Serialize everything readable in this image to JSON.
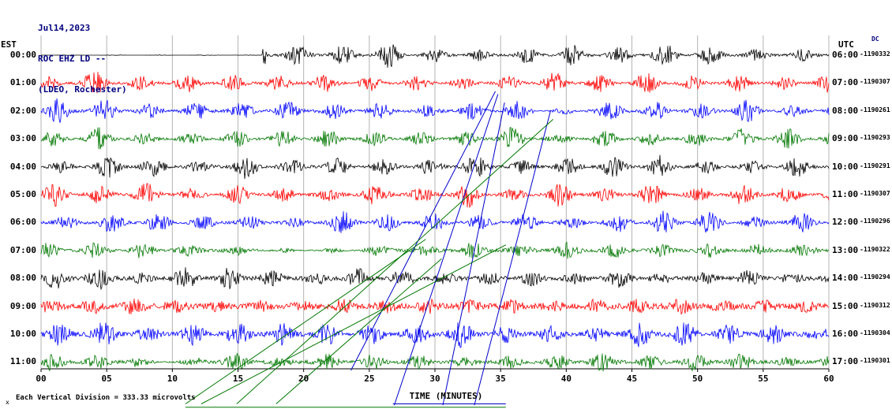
{
  "header": {
    "date": "Jul14,2023",
    "station": "ROC EHZ LD --",
    "location": "(LDEO, Rochester)"
  },
  "axes": {
    "left_title": "EST",
    "right_title": "UTC",
    "right_corner": "DC",
    "x_title": "TIME (MINUTES)",
    "x_ticks": [
      "00",
      "05",
      "10",
      "15",
      "20",
      "25",
      "30",
      "35",
      "40",
      "45",
      "50",
      "55",
      "60"
    ]
  },
  "footer": {
    "scale_note": "Each Vertical Division =  333.33 microvolts",
    "marker": "x"
  },
  "chart_data": {
    "type": "line",
    "title": "ROC EHZ LD -- (LDEO, Rochester) helicorder record Jul14,2023",
    "x_axis": {
      "label": "TIME (MINUTES)",
      "range_minutes": [
        0,
        60
      ],
      "tick_interval_minutes": 5
    },
    "grid": true,
    "trace_colors_cycle": [
      "#000000",
      "#ff0000",
      "#0000ff",
      "#007700"
    ],
    "rows": [
      {
        "est": "00:00",
        "utc": "06:00",
        "dc": "-1190332",
        "color": "#000000",
        "seed": 101,
        "base_noise": 1.3,
        "burst_period_min": 3.5,
        "burst_phase_min": 2.0,
        "burst_amp": 12,
        "quiet": [
          [
            0,
            16.8,
            0.03
          ]
        ],
        "spikes": [
          [
            17.0,
            15
          ]
        ]
      },
      {
        "est": "01:00",
        "utc": "07:00",
        "dc": "-1190307",
        "color": "#ff0000",
        "seed": 202,
        "base_noise": 1.5,
        "burst_period_min": 3.5,
        "burst_phase_min": 0.6,
        "burst_amp": 12
      },
      {
        "est": "02:00",
        "utc": "08:00",
        "dc": "-1190261",
        "color": "#0000ff",
        "seed": 303,
        "base_noise": 1.5,
        "burst_period_min": 3.5,
        "burst_phase_min": 1.3,
        "burst_amp": 12,
        "quiet": [
          [
            37.5,
            41.5,
            0.35
          ]
        ]
      },
      {
        "est": "03:00",
        "utc": "09:00",
        "dc": "-1190293",
        "color": "#007700",
        "seed": 404,
        "base_noise": 1.4,
        "burst_period_min": 3.5,
        "burst_phase_min": 0.9,
        "burst_amp": 11
      },
      {
        "est": "04:00",
        "utc": "10:00",
        "dc": "-1190291",
        "color": "#000000",
        "seed": 505,
        "base_noise": 1.5,
        "burst_period_min": 3.5,
        "burst_phase_min": 1.6,
        "burst_amp": 12
      },
      {
        "est": "05:00",
        "utc": "11:00",
        "dc": "-1190307",
        "color": "#ff0000",
        "seed": 606,
        "base_noise": 1.6,
        "burst_period_min": 3.5,
        "burst_phase_min": 1.0,
        "burst_amp": 12
      },
      {
        "est": "06:00",
        "utc": "12:00",
        "dc": "-1190296",
        "color": "#0000ff",
        "seed": 707,
        "base_noise": 1.6,
        "burst_period_min": 3.5,
        "burst_phase_min": 1.9,
        "burst_amp": 11
      },
      {
        "est": "07:00",
        "utc": "13:00",
        "dc": "-1190322",
        "color": "#007700",
        "seed": 808,
        "base_noise": 1.8,
        "burst_period_min": 3.6,
        "burst_phase_min": 0.5,
        "burst_amp": 8,
        "quiet": [
          [
            16.5,
            24.5,
            0.4
          ]
        ]
      },
      {
        "est": "08:00",
        "utc": "14:00",
        "dc": "-1190294",
        "color": "#000000",
        "seed": 909,
        "base_noise": 2.2,
        "burst_period_min": 3.3,
        "burst_phase_min": 1.1,
        "burst_amp": 10
      },
      {
        "est": "09:00",
        "utc": "15:00",
        "dc": "-1190312",
        "color": "#ff0000",
        "seed": 1010,
        "base_noise": 3.2,
        "burst_period_min": 3.2,
        "burst_phase_min": 0.7,
        "burst_amp": 7
      },
      {
        "est": "10:00",
        "utc": "16:00",
        "dc": "-1190304",
        "color": "#0000ff",
        "seed": 1111,
        "base_noise": 2.6,
        "burst_period_min": 3.4,
        "burst_phase_min": 1.4,
        "burst_amp": 12
      },
      {
        "est": "11:00",
        "utc": "17:00",
        "dc": "-1190301",
        "color": "#007700",
        "seed": 1212,
        "base_noise": 2.0,
        "burst_period_min": 3.5,
        "burst_phase_min": 0.8,
        "burst_amp": 9,
        "quiet": [
          [
            7.5,
            12,
            0.35
          ]
        ]
      }
    ],
    "artifact_lines": [
      {
        "color": "#0000cc",
        "from": [
          23.6,
          11.3
        ],
        "to": [
          34.6,
          1.3
        ]
      },
      {
        "color": "#0000cc",
        "from": [
          26.9,
          12.55
        ],
        "to": [
          34.8,
          1.4
        ]
      },
      {
        "color": "#0000cc",
        "from": [
          30.6,
          12.55
        ],
        "to": [
          35.3,
          1.7
        ]
      },
      {
        "color": "#0000cc",
        "from": [
          33.0,
          12.55
        ],
        "to": [
          38.8,
          2.0
        ]
      },
      {
        "color": "#0000cc",
        "from": [
          26.8,
          12.5
        ],
        "to": [
          35.4,
          12.5
        ]
      },
      {
        "color": "#007700",
        "from": [
          11.0,
          12.5
        ],
        "to": [
          29.3,
          6.6
        ]
      },
      {
        "color": "#007700",
        "from": [
          12.2,
          12.5
        ],
        "to": [
          35.4,
          6.8
        ]
      },
      {
        "color": "#007700",
        "from": [
          14.9,
          12.5
        ],
        "to": [
          39.0,
          2.3
        ]
      },
      {
        "color": "#007700",
        "from": [
          17.9,
          12.5
        ],
        "to": [
          30.5,
          7.3
        ]
      },
      {
        "color": "#007700",
        "from": [
          11.0,
          12.62
        ],
        "to": [
          35.4,
          12.62
        ]
      }
    ]
  }
}
